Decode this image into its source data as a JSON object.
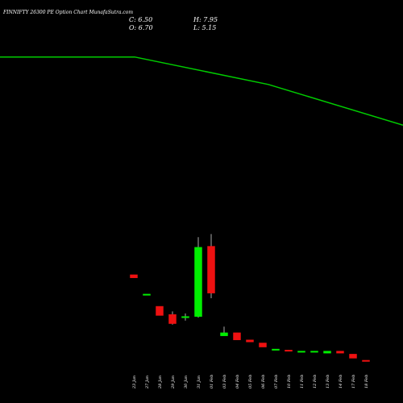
{
  "chart_data": {
    "type": "candlestick",
    "title": "FINNIFTY 26300  PE Option  Chart MunafaSutra.com",
    "ohlc_labels": {
      "close": "C: 6.50",
      "high": "H: 7.95",
      "open": "O: 6.70",
      "low": "L: 5.15"
    },
    "colors": {
      "up": "#00ee00",
      "down": "#ee1111",
      "wick": "#aaaaaa",
      "moving_average": "#00cc00",
      "background": "#000000",
      "text": "#ffffff"
    },
    "categories": [
      "23 Jan",
      "27 Jan",
      "28 Jan",
      "29 Jan",
      "30 Jan",
      "31 Jan",
      "01 Feb",
      "03 Feb",
      "04 Feb",
      "05 Feb",
      "06 Feb",
      "07 Feb",
      "10 Feb",
      "11 Feb",
      "12 Feb",
      "13 Feb",
      "14 Feb",
      "17 Feb",
      "18 Feb"
    ],
    "candles": [
      {
        "o": 85,
        "h": 85,
        "l": 82,
        "c": 82
      },
      {
        "o": 66,
        "h": 66,
        "l": 66,
        "c": 66
      },
      {
        "o": 54,
        "h": 54,
        "l": 45,
        "c": 45
      },
      {
        "o": 46,
        "h": 49,
        "l": 36,
        "c": 37
      },
      {
        "o": 43,
        "h": 47,
        "l": 40,
        "c": 44
      },
      {
        "o": 44,
        "h": 122,
        "l": 43,
        "c": 112
      },
      {
        "o": 113,
        "h": 125,
        "l": 62,
        "c": 67
      },
      {
        "o": 25,
        "h": 34,
        "l": 25,
        "c": 28
      },
      {
        "o": 28,
        "h": 28,
        "l": 21,
        "c": 21
      },
      {
        "o": 21,
        "h": 21,
        "l": 19,
        "c": 19
      },
      {
        "o": 18,
        "h": 18,
        "l": 14,
        "c": 14
      },
      {
        "o": 11,
        "h": 12,
        "l": 11,
        "c": 12
      },
      {
        "o": 11,
        "h": 11,
        "l": 10,
        "c": 10
      },
      {
        "o": 9,
        "h": 10,
        "l": 9,
        "c": 10
      },
      {
        "o": 9,
        "h": 10,
        "l": 9,
        "c": 10
      },
      {
        "o": 8,
        "h": 10,
        "l": 8,
        "c": 10
      },
      {
        "o": 10,
        "h": 10,
        "l": 8,
        "c": 8
      },
      {
        "o": 7,
        "h": 7,
        "l": 3,
        "c": 3
      },
      {
        "o": 1,
        "h": 1,
        "l": 0,
        "c": 0
      }
    ],
    "moving_average": [
      {
        "x": 0,
        "y": 299
      },
      {
        "x": 167,
        "y": 299
      },
      {
        "x": 333,
        "y": 272
      },
      {
        "x": 500,
        "y": 232
      }
    ],
    "ylim": [
      -41,
      355
    ],
    "xlim": [
      0,
      500
    ],
    "grid": false,
    "legend": "none"
  }
}
